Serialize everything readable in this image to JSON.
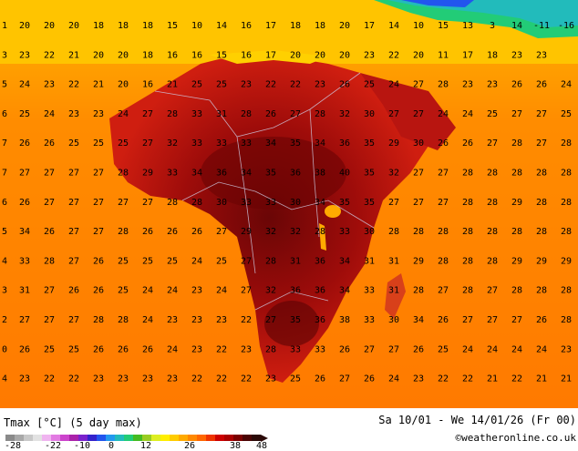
{
  "map": {
    "grid_values": [
      [
        "1",
        "20",
        "20",
        "20",
        "18",
        "18",
        "18",
        "15",
        "10",
        "14",
        "16",
        "17",
        "18",
        "18",
        "20",
        "17",
        "14",
        "10",
        "15",
        "13",
        "3",
        "14",
        "-11",
        "-16"
      ],
      [
        "3",
        "23",
        "22",
        "21",
        "20",
        "20",
        "18",
        "16",
        "16",
        "15",
        "16",
        "17",
        "20",
        "20",
        "20",
        "23",
        "22",
        "20",
        "11",
        "17",
        "18",
        "23",
        "23",
        ""
      ],
      [
        "5",
        "24",
        "23",
        "22",
        "21",
        "20",
        "16",
        "21",
        "25",
        "25",
        "23",
        "22",
        "22",
        "23",
        "26",
        "25",
        "24",
        "27",
        "28",
        "23",
        "23",
        "26",
        "26",
        "24"
      ],
      [
        "6",
        "25",
        "24",
        "23",
        "23",
        "24",
        "27",
        "28",
        "33",
        "31",
        "28",
        "26",
        "27",
        "28",
        "32",
        "30",
        "27",
        "27",
        "24",
        "24",
        "25",
        "27",
        "27",
        "25"
      ],
      [
        "7",
        "26",
        "26",
        "25",
        "25",
        "25",
        "27",
        "32",
        "33",
        "33",
        "33",
        "34",
        "35",
        "34",
        "36",
        "35",
        "29",
        "30",
        "26",
        "26",
        "27",
        "28",
        "27",
        "28"
      ],
      [
        "7",
        "27",
        "27",
        "27",
        "27",
        "28",
        "29",
        "33",
        "34",
        "36",
        "34",
        "35",
        "36",
        "38",
        "40",
        "35",
        "32",
        "27",
        "27",
        "28",
        "28",
        "28",
        "28",
        "28"
      ],
      [
        "6",
        "26",
        "27",
        "27",
        "27",
        "27",
        "27",
        "28",
        "28",
        "30",
        "33",
        "33",
        "30",
        "34",
        "35",
        "35",
        "27",
        "27",
        "27",
        "28",
        "28",
        "29",
        "28",
        "28"
      ],
      [
        "5",
        "34",
        "26",
        "27",
        "27",
        "28",
        "26",
        "26",
        "26",
        "27",
        "29",
        "32",
        "32",
        "28",
        "33",
        "30",
        "28",
        "28",
        "28",
        "28",
        "28",
        "28",
        "28",
        "28"
      ],
      [
        "4",
        "33",
        "28",
        "27",
        "26",
        "25",
        "25",
        "25",
        "24",
        "25",
        "27",
        "28",
        "31",
        "36",
        "34",
        "31",
        "31",
        "29",
        "28",
        "28",
        "28",
        "29",
        "29",
        "29"
      ],
      [
        "3",
        "31",
        "27",
        "26",
        "26",
        "25",
        "24",
        "24",
        "23",
        "24",
        "27",
        "32",
        "36",
        "36",
        "34",
        "33",
        "31",
        "28",
        "27",
        "28",
        "27",
        "28",
        "28",
        "28"
      ],
      [
        "2",
        "27",
        "27",
        "27",
        "28",
        "28",
        "24",
        "23",
        "23",
        "23",
        "22",
        "27",
        "35",
        "36",
        "38",
        "33",
        "30",
        "34",
        "26",
        "27",
        "27",
        "27",
        "26",
        "28"
      ],
      [
        "0",
        "26",
        "25",
        "25",
        "26",
        "26",
        "26",
        "24",
        "23",
        "22",
        "23",
        "28",
        "33",
        "33",
        "26",
        "27",
        "27",
        "26",
        "25",
        "24",
        "24",
        "24",
        "24",
        "23"
      ],
      [
        "4",
        "23",
        "22",
        "22",
        "23",
        "23",
        "23",
        "23",
        "22",
        "22",
        "22",
        "23",
        "25",
        "26",
        "27",
        "26",
        "24",
        "23",
        "22",
        "22",
        "21",
        "22",
        "21",
        "21"
      ],
      [
        "",
        "",
        "",
        "",
        "",
        "",
        "",
        "",
        "",
        "",
        "",
        "",
        "",
        "",
        "",
        "",
        "",
        "",
        "",
        "",
        "",
        "",
        "",
        ""
      ]
    ]
  },
  "footer": {
    "title": "Tmax [°C] (5 day max)",
    "period": "Sa 10/01 - We 14/01/26 (Fr 00)",
    "credit": "©weatheronline.co.uk",
    "scale_ticks": [
      "-28",
      "-22",
      "-10",
      "0",
      "12",
      "26",
      "38",
      "48"
    ],
    "scale_colors": [
      "#8a8a8a",
      "#a8a8a8",
      "#c8c8c8",
      "#e2e2e2",
      "#f0b4f0",
      "#e27ae2",
      "#cc44cc",
      "#aa22aa",
      "#7a22cc",
      "#3322cc",
      "#2255ee",
      "#2299ee",
      "#22bbbb",
      "#22cc77",
      "#44bb22",
      "#99cc22",
      "#ddee22",
      "#ffee00",
      "#ffcc00",
      "#ffaa00",
      "#ff8800",
      "#ff6600",
      "#ee3300",
      "#cc0000",
      "#aa0000",
      "#7a0000",
      "#4a0404",
      "#2b0a08"
    ]
  }
}
